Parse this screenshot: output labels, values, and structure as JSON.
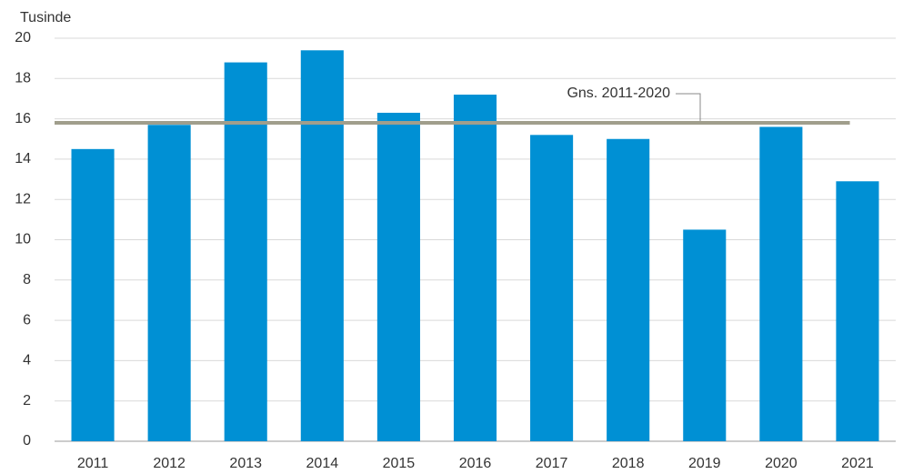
{
  "chart_data": {
    "type": "bar",
    "ylabel": "Tusinde",
    "categories": [
      "2011",
      "2012",
      "2013",
      "2014",
      "2015",
      "2016",
      "2017",
      "2018",
      "2019",
      "2020",
      "2021"
    ],
    "values": [
      14.5,
      15.7,
      18.8,
      19.4,
      16.3,
      17.2,
      15.2,
      15.0,
      10.5,
      15.6,
      12.9
    ],
    "color": "#0090d4",
    "ylim": [
      0,
      20
    ],
    "yticks": [
      0,
      2,
      4,
      6,
      8,
      10,
      12,
      14,
      16,
      18,
      20
    ],
    "grid": true,
    "average": {
      "name": "Gns. 2011-2020",
      "value": 15.8,
      "color": "#a09e8c"
    }
  }
}
